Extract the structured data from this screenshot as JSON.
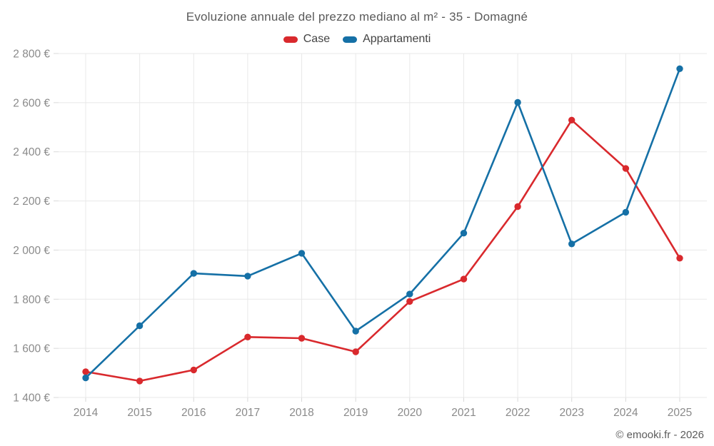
{
  "title": "Evoluzione annuale del prezzo mediano al m² - 35 - Domagné",
  "footer": "© emooki.fr - 2026",
  "colors": {
    "case": "#d9292d",
    "appartamenti": "#1570a6",
    "grid": "#e8e8e8",
    "tick": "#d9d9d9",
    "axis_label": "#8a8a8a",
    "title_text": "#5a5a5a",
    "background": "#ffffff"
  },
  "chart_data": {
    "type": "line",
    "title": "Evoluzione annuale del prezzo mediano al m² - 35 - Domagné",
    "x": [
      2014,
      2015,
      2016,
      2017,
      2018,
      2019,
      2020,
      2021,
      2022,
      2023,
      2024,
      2025
    ],
    "series": [
      {
        "name": "Case",
        "color": "#d9292d",
        "values": [
          1505,
          1467,
          1512,
          1646,
          1641,
          1586,
          1791,
          1882,
          2177,
          2529,
          2332,
          1967
        ]
      },
      {
        "name": "Appartamenti",
        "color": "#1570a6",
        "values": [
          1480,
          1692,
          1905,
          1894,
          1987,
          1670,
          1821,
          2069,
          2601,
          2025,
          2154,
          2738
        ]
      }
    ],
    "xlabel": "",
    "ylabel": "",
    "ylim": [
      1400,
      2800
    ],
    "y_ticks": [
      1400,
      1600,
      1800,
      2000,
      2200,
      2400,
      2600,
      2800
    ],
    "y_tick_labels": [
      "1 400 €",
      "1 600 €",
      "1 800 €",
      "2 000 €",
      "2 200 €",
      "2 400 €",
      "2 600 €",
      "2 800 €"
    ],
    "grid": true,
    "legend_position": "top",
    "marker": "circle"
  }
}
